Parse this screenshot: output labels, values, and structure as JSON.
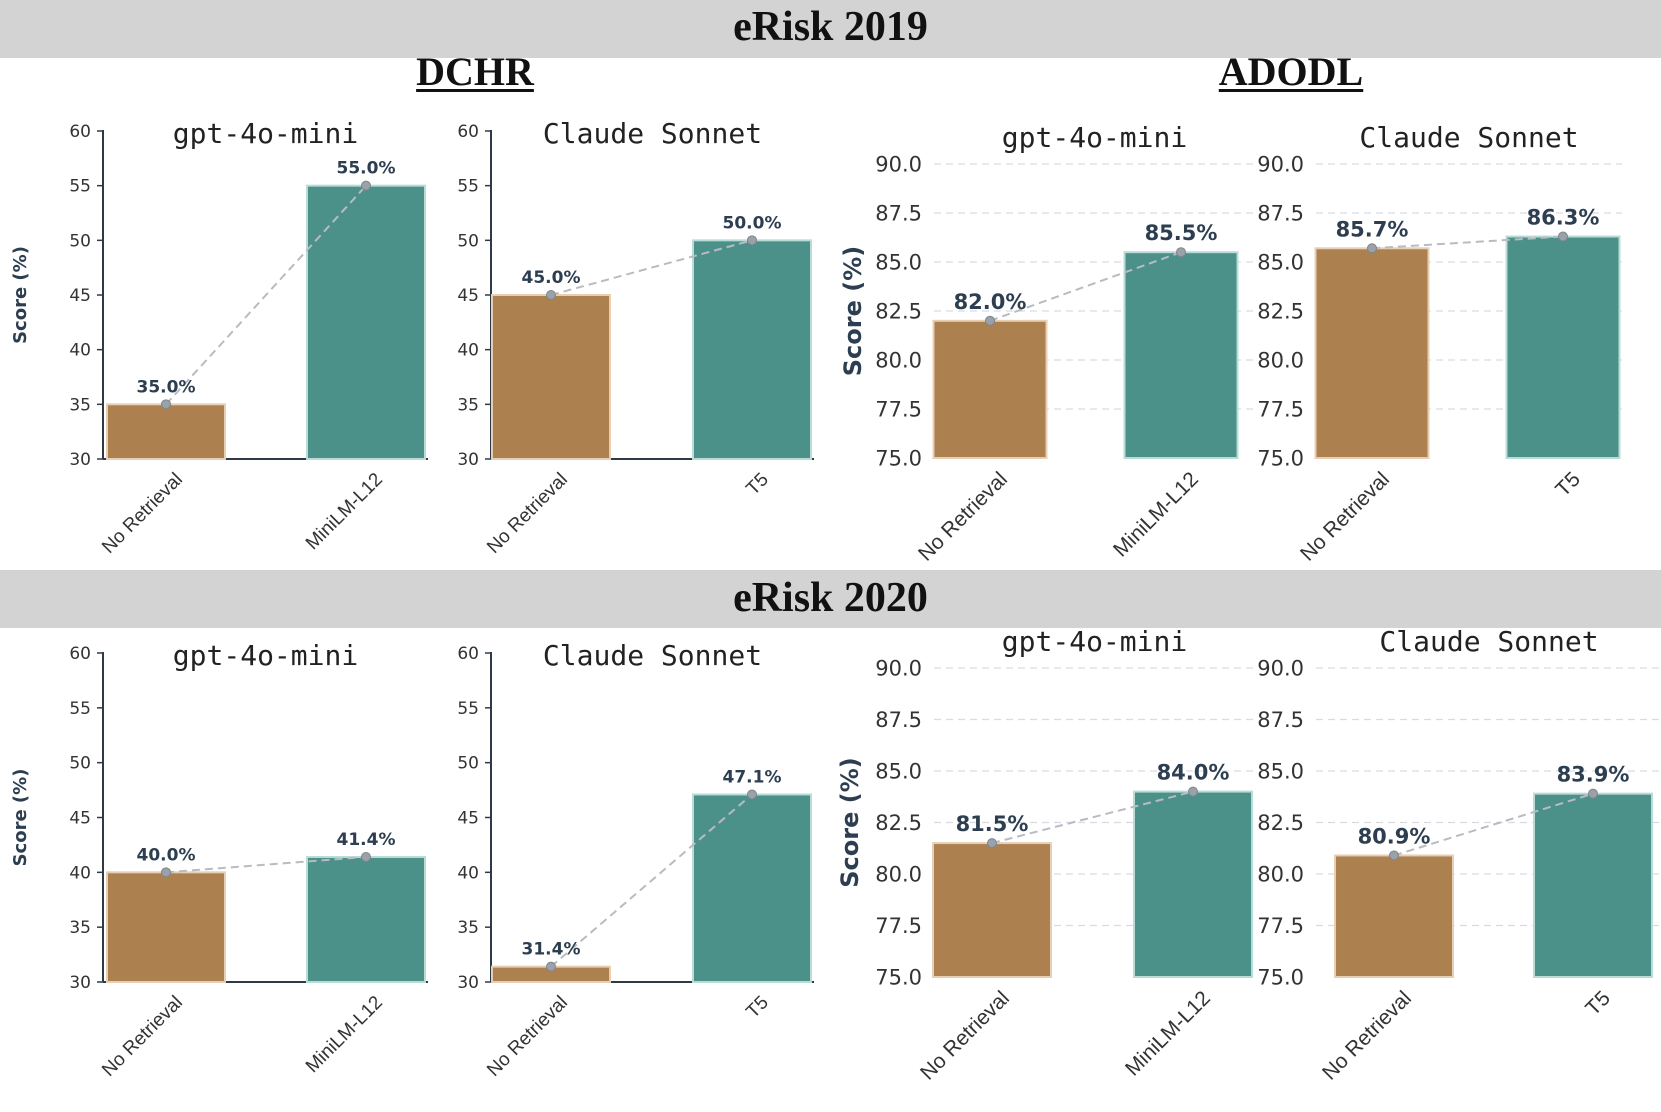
{
  "sections": [
    {
      "title": "eRisk 2019"
    },
    {
      "title": "eRisk 2020"
    }
  ],
  "groups": {
    "dchr": "DCHR",
    "adodl": "ADODL"
  },
  "colors": {
    "no_retrieval": "#ad8050",
    "retrieval": "#4b918a",
    "trend_line": "#b8bcc2",
    "axis": "#2e3a48",
    "grid": "#d8dce2",
    "label": "#2c3e50"
  },
  "chart_data": [
    {
      "type": "bar",
      "section": "eRisk 2019",
      "group": "DCHR",
      "title": "gpt-4o-mini",
      "categories": [
        "No Retrieval",
        "MiniLM-L12"
      ],
      "values": [
        35.0,
        55.0
      ],
      "data_labels": [
        "35.0%",
        "55.0%"
      ],
      "ylabel": "Score (%)",
      "ylim": [
        30,
        60
      ],
      "yticks": [
        "30",
        "35",
        "40",
        "45",
        "50",
        "55",
        "60"
      ],
      "grid": false
    },
    {
      "type": "bar",
      "section": "eRisk 2019",
      "group": "DCHR",
      "title": "Claude Sonnet",
      "categories": [
        "No Retrieval",
        "T5"
      ],
      "values": [
        45.0,
        50.0
      ],
      "data_labels": [
        "45.0%",
        "50.0%"
      ],
      "ylabel": "",
      "ylim": [
        30,
        60
      ],
      "yticks": [
        "30",
        "35",
        "40",
        "45",
        "50",
        "55",
        "60"
      ],
      "grid": false
    },
    {
      "type": "bar",
      "section": "eRisk 2019",
      "group": "ADODL",
      "title": "gpt-4o-mini",
      "categories": [
        "No Retrieval",
        "MiniLM-L12"
      ],
      "values": [
        82.0,
        85.5
      ],
      "data_labels": [
        "82.0%",
        "85.5%"
      ],
      "ylabel": "Score (%)",
      "ylim": [
        75,
        90
      ],
      "yticks": [
        "75.0",
        "77.5",
        "80.0",
        "82.5",
        "85.0",
        "87.5",
        "90.0"
      ],
      "grid": true
    },
    {
      "type": "bar",
      "section": "eRisk 2019",
      "group": "ADODL",
      "title": "Claude Sonnet",
      "categories": [
        "No Retrieval",
        "T5"
      ],
      "values": [
        85.7,
        86.3
      ],
      "data_labels": [
        "85.7%",
        "86.3%"
      ],
      "ylabel": "",
      "ylim": [
        75,
        90
      ],
      "yticks": [
        "75.0",
        "77.5",
        "80.0",
        "82.5",
        "85.0",
        "87.5",
        "90.0"
      ],
      "grid": true
    },
    {
      "type": "bar",
      "section": "eRisk 2020",
      "group": "DCHR",
      "title": "gpt-4o-mini",
      "categories": [
        "No Retrieval",
        "MiniLM-L12"
      ],
      "values": [
        40.0,
        41.4
      ],
      "data_labels": [
        "40.0%",
        "41.4%"
      ],
      "ylabel": "Score (%)",
      "ylim": [
        30,
        60
      ],
      "yticks": [
        "30",
        "35",
        "40",
        "45",
        "50",
        "55",
        "60"
      ],
      "grid": false
    },
    {
      "type": "bar",
      "section": "eRisk 2020",
      "group": "DCHR",
      "title": "Claude Sonnet",
      "categories": [
        "No Retrieval",
        "T5"
      ],
      "values": [
        31.4,
        47.1
      ],
      "data_labels": [
        "31.4%",
        "47.1%"
      ],
      "ylabel": "",
      "ylim": [
        30,
        60
      ],
      "yticks": [
        "30",
        "35",
        "40",
        "45",
        "50",
        "55",
        "60"
      ],
      "grid": false
    },
    {
      "type": "bar",
      "section": "eRisk 2020",
      "group": "ADODL",
      "title": "gpt-4o-mini",
      "categories": [
        "No Retrieval",
        "MiniLM-L12"
      ],
      "values": [
        81.5,
        84.0
      ],
      "data_labels": [
        "81.5%",
        "84.0%"
      ],
      "ylabel": "Score (%)",
      "ylim": [
        75,
        90
      ],
      "yticks": [
        "75.0",
        "77.5",
        "80.0",
        "82.5",
        "85.0",
        "87.5",
        "90.0"
      ],
      "grid": true
    },
    {
      "type": "bar",
      "section": "eRisk 2020",
      "group": "ADODL",
      "title": "Claude Sonnet",
      "categories": [
        "No Retrieval",
        "T5"
      ],
      "values": [
        80.9,
        83.9
      ],
      "data_labels": [
        "80.9%",
        "83.9%"
      ],
      "ylabel": "",
      "ylim": [
        75,
        90
      ],
      "yticks": [
        "75.0",
        "77.5",
        "80.0",
        "82.5",
        "85.0",
        "87.5",
        "90.0"
      ],
      "grid": true
    }
  ]
}
